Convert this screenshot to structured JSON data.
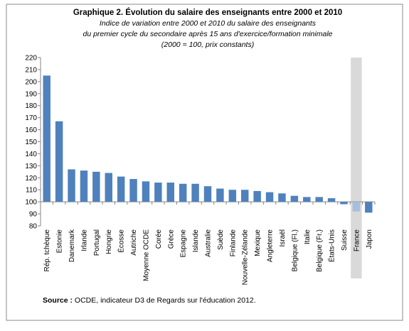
{
  "chart_data": {
    "type": "bar",
    "title": "Graphique 2. Évolution du salaire des enseignants  entre 2000 et 2010",
    "subtitle": [
      "Indice de variation entre 2000 et 2010 du salaire des enseignants",
      "du premier cycle du secondaire après 15 ans d'exercice/formation minimale",
      "(2000 = 100, prix constants)"
    ],
    "source_label": "Source :",
    "source_text": " OCDE, indicateur D3 de Regards sur l'éducation 2012.",
    "categories": [
      "Rép. tchèque",
      "Estonie",
      "Danemark",
      "Irlande",
      "Portugal",
      "Hongrie",
      "Écosse",
      "Autriche",
      "Moyenne OCDE",
      "Corée",
      "Grèce",
      "Espagne",
      "Islande",
      "Australie",
      "Suède",
      "Finlande",
      "Nouvelle-Zélande",
      "Mexique",
      "Angleterre",
      "Israël",
      "Belgique (Fl.)",
      "Italie",
      "Belgique (Fr.)",
      "États-Unis",
      "Suisse",
      "France",
      "Japon"
    ],
    "values": [
      205,
      167,
      127,
      126,
      125,
      124,
      121,
      119,
      117,
      116,
      116,
      115,
      115,
      113,
      111,
      110,
      110,
      109,
      108,
      107,
      105,
      104,
      104,
      103,
      98,
      92,
      91
    ],
    "color": "#4f81bd",
    "highlight": "France",
    "highlight_color": "#a7bfdd",
    "highlight_band": "#d9d9d9",
    "baseline": 100,
    "ylim": [
      80,
      220
    ],
    "yticks": [
      80,
      90,
      100,
      110,
      120,
      130,
      140,
      150,
      160,
      170,
      180,
      190,
      200,
      210,
      220
    ]
  }
}
